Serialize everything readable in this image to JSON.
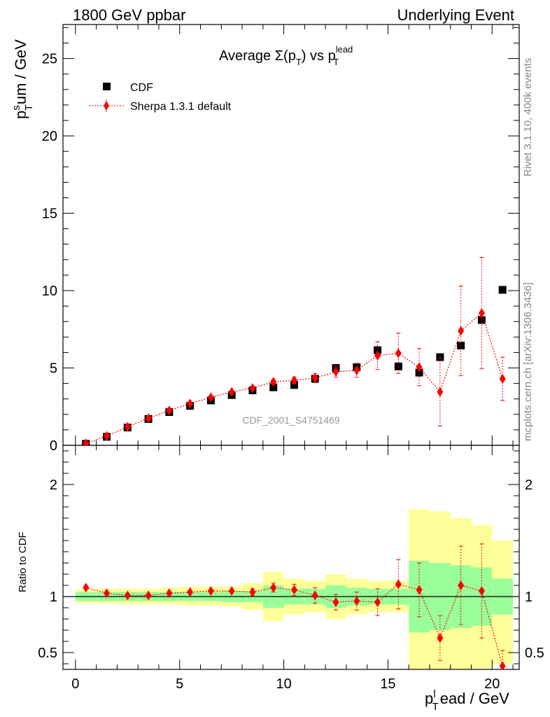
{
  "header": {
    "left": "1800 GeV ppbar",
    "right": "Underlying Event"
  },
  "side_labels": {
    "rivet": "Rivet 3.1.10,  400k events",
    "mcplots": "mcplots.cern.ch [arXiv:1306.3436]"
  },
  "chart_data": [
    {
      "type": "scatter",
      "panel": "main",
      "title_parts": {
        "main": "Average Σ(p",
        "sub1": "T",
        "mid": ") vs p",
        "sup": "lead",
        "sub2": "T"
      },
      "ylabel_parts": {
        "base": "p",
        "sup": "s",
        "sub": "T",
        "rest": "um / GeV"
      },
      "watermark": "CDF_2001_S4751469",
      "ylim": [
        0,
        27.2
      ],
      "xlim": [
        -0.6,
        21.3
      ],
      "yticks": [
        {
          "v": 0,
          "label": "0"
        },
        {
          "v": 5,
          "label": "5"
        },
        {
          "v": 10,
          "label": "10"
        },
        {
          "v": 15,
          "label": "15"
        },
        {
          "v": 20,
          "label": "20"
        },
        {
          "v": 25,
          "label": "25"
        }
      ],
      "legend_position": "top-left",
      "series": [
        {
          "name": "CDF",
          "marker": "square",
          "color": "#000000",
          "x": [
            0.5,
            1.5,
            2.5,
            3.5,
            4.5,
            5.5,
            6.5,
            7.5,
            8.5,
            9.5,
            10.5,
            11.5,
            12.5,
            13.5,
            14.5,
            15.5,
            16.5,
            17.5,
            18.5,
            19.5,
            20.5
          ],
          "y": [
            0.1,
            0.55,
            1.15,
            1.7,
            2.15,
            2.55,
            2.9,
            3.25,
            3.55,
            3.75,
            3.9,
            4.3,
            5.0,
            5.05,
            6.15,
            5.1,
            4.7,
            5.7,
            6.45,
            8.1,
            10.05
          ]
        },
        {
          "name": "Sherpa 1.3.1 default",
          "marker": "diamond",
          "color": "#ff0000",
          "x": [
            0.5,
            1.5,
            2.5,
            3.5,
            4.5,
            5.5,
            6.5,
            7.5,
            8.5,
            9.5,
            10.5,
            11.5,
            12.5,
            13.5,
            14.5,
            15.5,
            16.5,
            17.5,
            18.5,
            19.5,
            20.5
          ],
          "y": [
            0.12,
            0.6,
            1.2,
            1.75,
            2.25,
            2.7,
            3.1,
            3.45,
            3.7,
            4.1,
            4.2,
            4.35,
            4.75,
            4.85,
            5.8,
            5.95,
            5.05,
            3.45,
            7.4,
            8.55,
            4.3
          ],
          "yerr": [
            0.02,
            0.03,
            0.04,
            0.05,
            0.06,
            0.07,
            0.08,
            0.1,
            0.12,
            0.15,
            0.2,
            0.3,
            0.35,
            0.45,
            0.9,
            1.3,
            1.2,
            2.2,
            2.9,
            3.6,
            1.4
          ]
        }
      ]
    },
    {
      "type": "scatter",
      "panel": "ratio",
      "ylabel": "Ratio to CDF",
      "xlabel_parts": {
        "base": "p",
        "sup": "l",
        "sub": "T",
        "rest": "ead / GeV"
      },
      "ylim": [
        0.35,
        2.35
      ],
      "xlim": [
        -0.6,
        21.3
      ],
      "yticks": [
        {
          "v": 0.5,
          "label": "0.5"
        },
        {
          "v": 1,
          "label": "1"
        },
        {
          "v": 2,
          "label": "2"
        }
      ],
      "xticks": [
        {
          "v": 0,
          "label": "0"
        },
        {
          "v": 5,
          "label": "5"
        },
        {
          "v": 10,
          "label": "10"
        },
        {
          "v": 15,
          "label": "15"
        },
        {
          "v": 20,
          "label": "20"
        }
      ],
      "bands": {
        "x_edges": [
          0,
          1,
          2,
          3,
          4,
          5,
          6,
          7,
          8,
          9,
          10,
          11,
          12,
          13,
          14,
          15,
          16,
          17,
          18,
          19,
          20,
          21
        ],
        "yellow_lo": [
          0.94,
          0.94,
          0.93,
          0.93,
          0.93,
          0.92,
          0.92,
          0.91,
          0.88,
          0.78,
          0.84,
          0.86,
          0.8,
          0.84,
          0.86,
          0.86,
          0.28,
          0.32,
          0.34,
          0.36,
          0.4
        ],
        "yellow_hi": [
          1.06,
          1.07,
          1.07,
          1.07,
          1.08,
          1.09,
          1.09,
          1.09,
          1.12,
          1.22,
          1.16,
          1.14,
          1.2,
          1.16,
          1.14,
          1.14,
          1.78,
          1.76,
          1.7,
          1.64,
          1.5
        ],
        "green_lo": [
          0.96,
          0.96,
          0.96,
          0.96,
          0.96,
          0.96,
          0.96,
          0.95,
          0.95,
          0.9,
          0.93,
          0.93,
          0.9,
          0.92,
          0.93,
          0.93,
          0.68,
          0.7,
          0.72,
          0.74,
          0.84
        ],
        "green_hi": [
          1.04,
          1.04,
          1.04,
          1.04,
          1.04,
          1.04,
          1.04,
          1.05,
          1.05,
          1.1,
          1.07,
          1.07,
          1.1,
          1.08,
          1.07,
          1.07,
          1.32,
          1.3,
          1.28,
          1.26,
          1.16
        ],
        "yellow_color": "#ffff99",
        "green_color": "#99ff99"
      },
      "series": [
        {
          "name": "Sherpa 1.3.1 default",
          "marker": "diamond",
          "color": "#ff0000",
          "x": [
            0.5,
            1.5,
            2.5,
            3.5,
            4.5,
            5.5,
            6.5,
            7.5,
            8.5,
            9.5,
            10.5,
            11.5,
            12.5,
            13.5,
            14.5,
            15.5,
            16.5,
            17.5,
            18.5,
            19.5,
            20.5
          ],
          "y": [
            1.08,
            1.03,
            1.01,
            1.01,
            1.03,
            1.04,
            1.05,
            1.05,
            1.04,
            1.08,
            1.06,
            1.01,
            0.95,
            0.96,
            0.95,
            1.11,
            1.06,
            0.63,
            1.1,
            1.05,
            0.38
          ],
          "yerr": [
            0.01,
            0.01,
            0.01,
            0.01,
            0.01,
            0.01,
            0.01,
            0.02,
            0.03,
            0.04,
            0.05,
            0.07,
            0.07,
            0.08,
            0.12,
            0.22,
            0.24,
            0.2,
            0.35,
            0.42,
            0.14
          ]
        }
      ]
    }
  ]
}
